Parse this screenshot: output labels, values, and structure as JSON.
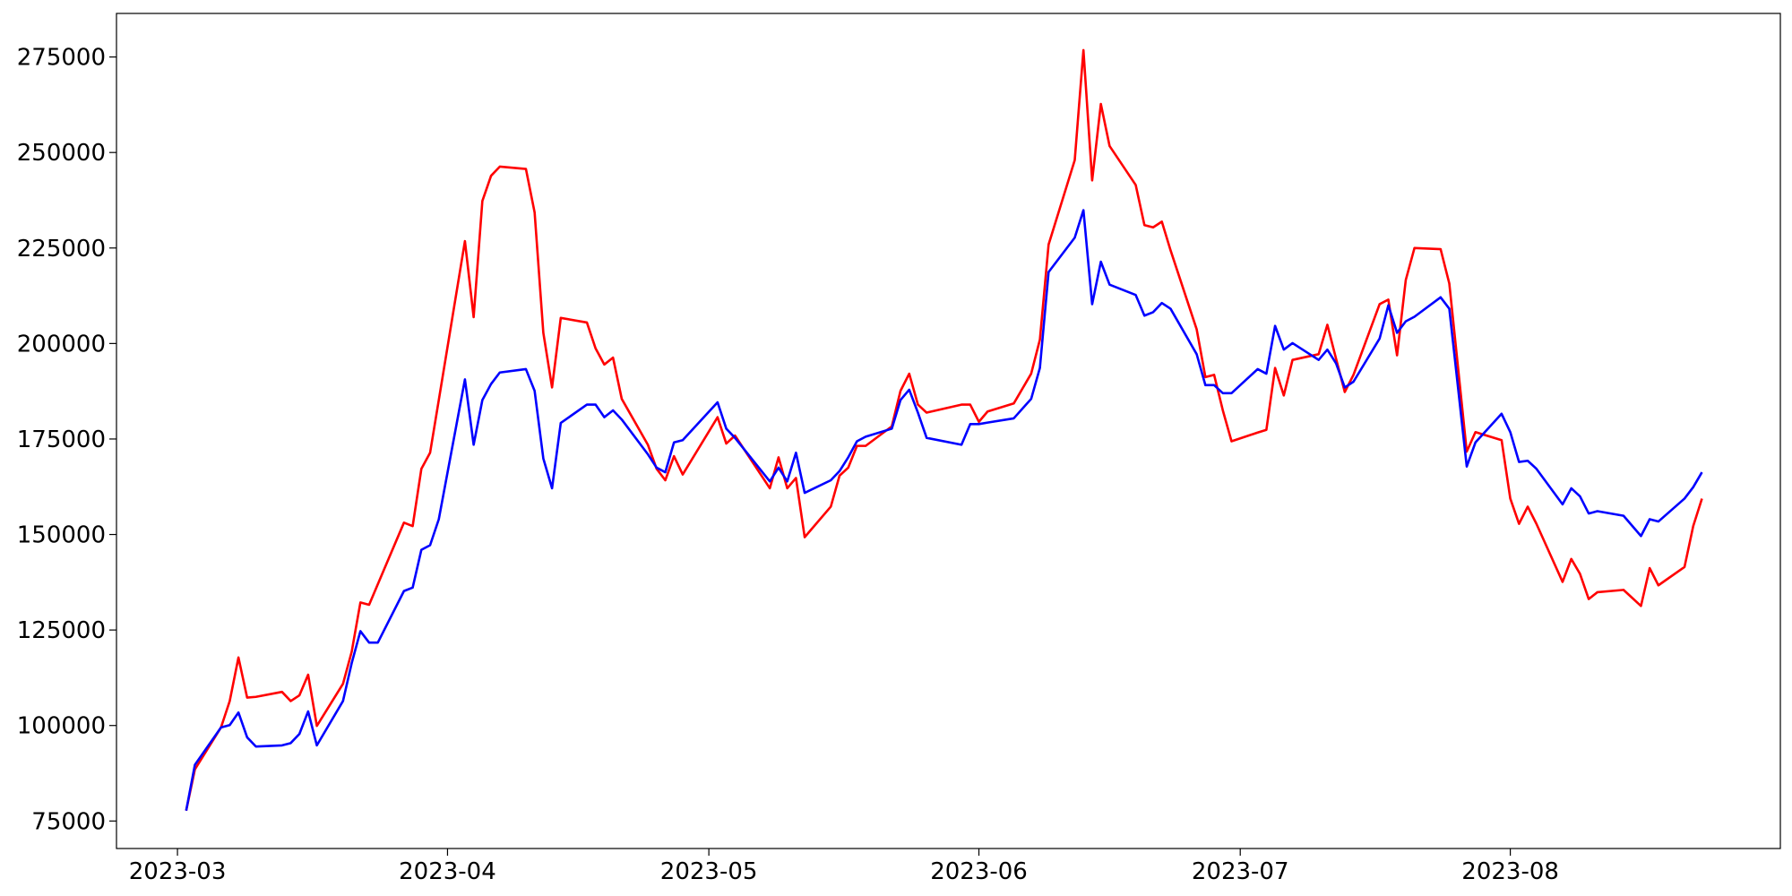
{
  "chart_data": {
    "type": "line",
    "x": [
      "2023-03-02",
      "2023-03-03",
      "2023-03-06",
      "2023-03-07",
      "2023-03-08",
      "2023-03-09",
      "2023-03-10",
      "2023-03-13",
      "2023-03-14",
      "2023-03-15",
      "2023-03-16",
      "2023-03-17",
      "2023-03-20",
      "2023-03-21",
      "2023-03-22",
      "2023-03-23",
      "2023-03-24",
      "2023-03-27",
      "2023-03-28",
      "2023-03-29",
      "2023-03-30",
      "2023-03-31",
      "2023-04-03",
      "2023-04-04",
      "2023-04-05",
      "2023-04-06",
      "2023-04-07",
      "2023-04-10",
      "2023-04-11",
      "2023-04-12",
      "2023-04-13",
      "2023-04-14",
      "2023-04-17",
      "2023-04-18",
      "2023-04-19",
      "2023-04-20",
      "2023-04-21",
      "2023-04-24",
      "2023-04-25",
      "2023-04-26",
      "2023-04-27",
      "2023-04-28",
      "2023-05-02",
      "2023-05-03",
      "2023-05-04",
      "2023-05-08",
      "2023-05-09",
      "2023-05-10",
      "2023-05-11",
      "2023-05-12",
      "2023-05-15",
      "2023-05-16",
      "2023-05-17",
      "2023-05-18",
      "2023-05-19",
      "2023-05-22",
      "2023-05-23",
      "2023-05-24",
      "2023-05-25",
      "2023-05-26",
      "2023-05-30",
      "2023-05-31",
      "2023-06-01",
      "2023-06-02",
      "2023-06-05",
      "2023-06-07",
      "2023-06-08",
      "2023-06-09",
      "2023-06-12",
      "2023-06-13",
      "2023-06-14",
      "2023-06-15",
      "2023-06-16",
      "2023-06-19",
      "2023-06-20",
      "2023-06-21",
      "2023-06-22",
      "2023-06-23",
      "2023-06-26",
      "2023-06-27",
      "2023-06-28",
      "2023-06-29",
      "2023-06-30",
      "2023-07-03",
      "2023-07-04",
      "2023-07-05",
      "2023-07-06",
      "2023-07-07",
      "2023-07-10",
      "2023-07-11",
      "2023-07-12",
      "2023-07-13",
      "2023-07-14",
      "2023-07-17",
      "2023-07-18",
      "2023-07-19",
      "2023-07-20",
      "2023-07-21",
      "2023-07-24",
      "2023-07-25",
      "2023-07-27",
      "2023-07-28",
      "2023-07-31",
      "2023-08-01",
      "2023-08-02",
      "2023-08-03",
      "2023-08-04",
      "2023-08-07",
      "2023-08-08",
      "2023-08-09",
      "2023-08-10",
      "2023-08-11",
      "2023-08-14",
      "2023-08-16",
      "2023-08-17",
      "2023-08-18",
      "2023-08-21",
      "2023-08-22",
      "2023-08-23"
    ],
    "series": [
      {
        "color": "#ff0000",
        "values": [
          77700,
          88500,
          99500,
          106400,
          117800,
          107300,
          107500,
          108800,
          106400,
          107900,
          113300,
          99900,
          110900,
          119300,
          132200,
          131600,
          137000,
          153100,
          152200,
          167200,
          171400,
          185200,
          226800,
          206900,
          237300,
          243900,
          246300,
          245700,
          234300,
          202800,
          188500,
          206700,
          205500,
          198700,
          194500,
          196300,
          185500,
          173500,
          167200,
          164200,
          170500,
          165700,
          180700,
          173800,
          175900,
          162100,
          170200,
          162100,
          164800,
          149300,
          157300,
          165400,
          167500,
          173200,
          173200,
          178300,
          187600,
          192100,
          184000,
          181900,
          184000,
          184000,
          179500,
          182200,
          184300,
          192100,
          201000,
          225900,
          248000,
          276800,
          242700,
          262700,
          251700,
          241500,
          231000,
          230400,
          231900,
          224400,
          203700,
          191200,
          191800,
          182500,
          174400,
          176700,
          177400,
          193600,
          186400,
          195700,
          197200,
          204900,
          196000,
          187300,
          191800,
          210300,
          211500,
          196900,
          216600,
          225000,
          224700,
          215700,
          171700,
          176800,
          174700,
          159400,
          152800,
          157300,
          152800,
          137600,
          143600,
          139700,
          133100,
          134900,
          135500,
          131300,
          141200,
          136700,
          141500,
          152200,
          159400
        ]
      },
      {
        "color": "#0000ff",
        "values": [
          77700,
          89700,
          99500,
          100100,
          103400,
          96900,
          94500,
          94800,
          95400,
          97800,
          103700,
          94800,
          106400,
          116300,
          124700,
          121700,
          121700,
          135200,
          136100,
          146000,
          147200,
          154000,
          190600,
          173500,
          185200,
          189400,
          192400,
          193300,
          187600,
          169900,
          162100,
          179200,
          184000,
          184000,
          180700,
          182500,
          180100,
          171000,
          167500,
          166300,
          174100,
          174700,
          184600,
          177700,
          175300,
          163900,
          167500,
          163900,
          171400,
          160900,
          164200,
          166600,
          170200,
          174400,
          175600,
          177700,
          185200,
          187900,
          181900,
          175300,
          173500,
          178900,
          178900,
          179300,
          180400,
          185500,
          193600,
          218700,
          227700,
          234900,
          210300,
          221400,
          215400,
          212700,
          207300,
          208200,
          210600,
          209100,
          197200,
          189100,
          189100,
          187000,
          187000,
          193300,
          192100,
          204600,
          198400,
          200100,
          195700,
          198400,
          194800,
          188500,
          190000,
          201300,
          210000,
          202800,
          205800,
          207000,
          212100,
          209100,
          167800,
          174100,
          181600,
          176800,
          169000,
          169300,
          167200,
          157900,
          162100,
          160000,
          155500,
          156100,
          154900,
          149600,
          154000,
          153400,
          159400,
          162400,
          166300
        ]
      }
    ],
    "xlim": [
      "2023-02-22",
      "2023-09-01"
    ],
    "xticks": [
      {
        "value": "2023-03-01",
        "label": "2023-03"
      },
      {
        "value": "2023-04-01",
        "label": "2023-04"
      },
      {
        "value": "2023-05-01",
        "label": "2023-05"
      },
      {
        "value": "2023-06-01",
        "label": "2023-06"
      },
      {
        "value": "2023-07-01",
        "label": "2023-07"
      },
      {
        "value": "2023-08-01",
        "label": "2023-08"
      }
    ],
    "ylim": [
      67800,
      286400
    ],
    "yticks": [
      75000,
      100000,
      125000,
      150000,
      175000,
      200000,
      225000,
      250000,
      275000
    ],
    "grid": false
  }
}
